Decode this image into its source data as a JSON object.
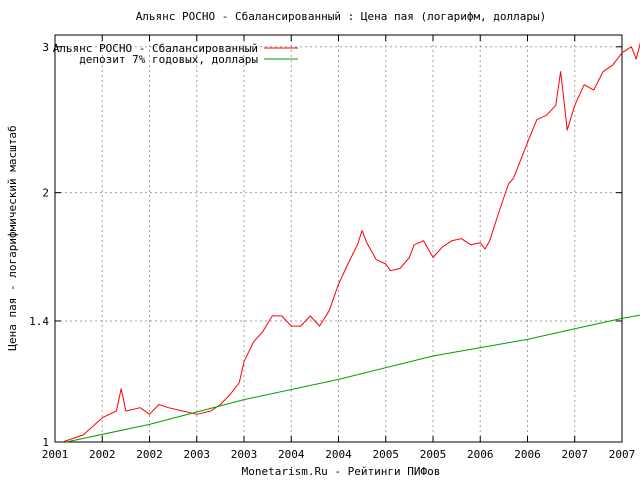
{
  "chart_data": {
    "type": "line",
    "title": "Альянс РОСНО - Сбалансированный : Цена пая (логарифм, доллары)",
    "xlabel": "Monetarism.Ru - Рейтинги ПИФов",
    "ylabel": "Цена пая - логарифмический масштаб",
    "y_scale": "log",
    "ylim": [
      1,
      3.1
    ],
    "xlim": [
      2001.0,
      2007.0
    ],
    "y_ticks": [
      {
        "value": 1,
        "label": "1"
      },
      {
        "value": 1.4,
        "label": "1.4"
      },
      {
        "value": 2,
        "label": "2"
      },
      {
        "value": 3,
        "label": "3"
      }
    ],
    "x_tick_labels": [
      "2001",
      "2002",
      "2002",
      "2003",
      "2003",
      "2004",
      "2004",
      "2005",
      "2005",
      "2006",
      "2006",
      "2007",
      "2007"
    ],
    "grid": true,
    "legend_position": "top-left",
    "series": [
      {
        "name": "Альянс РОСНО - Сбалансированный",
        "color": "#ff0000",
        "points": [
          [
            2001.08,
            1.0
          ],
          [
            2001.3,
            1.02
          ],
          [
            2001.5,
            1.07
          ],
          [
            2001.65,
            1.09
          ],
          [
            2001.7,
            1.16
          ],
          [
            2001.75,
            1.09
          ],
          [
            2001.9,
            1.1
          ],
          [
            2002.0,
            1.08
          ],
          [
            2002.1,
            1.11
          ],
          [
            2002.2,
            1.1
          ],
          [
            2002.35,
            1.09
          ],
          [
            2002.5,
            1.08
          ],
          [
            2002.65,
            1.09
          ],
          [
            2002.75,
            1.11
          ],
          [
            2002.85,
            1.14
          ],
          [
            2002.95,
            1.18
          ],
          [
            2003.0,
            1.25
          ],
          [
            2003.1,
            1.32
          ],
          [
            2003.2,
            1.36
          ],
          [
            2003.3,
            1.42
          ],
          [
            2003.4,
            1.42
          ],
          [
            2003.5,
            1.38
          ],
          [
            2003.6,
            1.38
          ],
          [
            2003.7,
            1.42
          ],
          [
            2003.8,
            1.38
          ],
          [
            2003.9,
            1.44
          ],
          [
            2004.0,
            1.55
          ],
          [
            2004.1,
            1.64
          ],
          [
            2004.2,
            1.73
          ],
          [
            2004.25,
            1.8
          ],
          [
            2004.3,
            1.74
          ],
          [
            2004.4,
            1.66
          ],
          [
            2004.5,
            1.64
          ],
          [
            2004.55,
            1.61
          ],
          [
            2004.65,
            1.62
          ],
          [
            2004.75,
            1.67
          ],
          [
            2004.8,
            1.73
          ],
          [
            2004.9,
            1.75
          ],
          [
            2005.0,
            1.67
          ],
          [
            2005.1,
            1.72
          ],
          [
            2005.2,
            1.75
          ],
          [
            2005.3,
            1.76
          ],
          [
            2005.4,
            1.73
          ],
          [
            2005.5,
            1.74
          ],
          [
            2005.55,
            1.71
          ],
          [
            2005.6,
            1.75
          ],
          [
            2005.7,
            1.9
          ],
          [
            2005.8,
            2.05
          ],
          [
            2005.85,
            2.08
          ],
          [
            2005.9,
            2.15
          ],
          [
            2006.0,
            2.3
          ],
          [
            2006.1,
            2.45
          ],
          [
            2006.2,
            2.48
          ],
          [
            2006.3,
            2.55
          ],
          [
            2006.35,
            2.8
          ],
          [
            2006.38,
            2.62
          ],
          [
            2006.42,
            2.38
          ],
          [
            2006.5,
            2.55
          ],
          [
            2006.6,
            2.7
          ],
          [
            2006.7,
            2.66
          ],
          [
            2006.8,
            2.8
          ],
          [
            2006.9,
            2.85
          ],
          [
            2007.0,
            2.95
          ],
          [
            2007.1,
            3.0
          ],
          [
            2007.15,
            2.9
          ],
          [
            2007.2,
            3.05
          ],
          [
            2007.25,
            3.12
          ]
        ]
      },
      {
        "name": "депозит 7% годовых, доллары",
        "color": "#00a000",
        "points": [
          [
            2001.12,
            1.0
          ],
          [
            2002.0,
            1.05
          ],
          [
            2003.0,
            1.125
          ],
          [
            2004.0,
            1.19
          ],
          [
            2005.0,
            1.27
          ],
          [
            2005.5,
            1.3
          ],
          [
            2006.0,
            1.33
          ],
          [
            2006.5,
            1.37
          ],
          [
            2007.0,
            1.41
          ],
          [
            2007.3,
            1.43
          ]
        ]
      }
    ]
  }
}
